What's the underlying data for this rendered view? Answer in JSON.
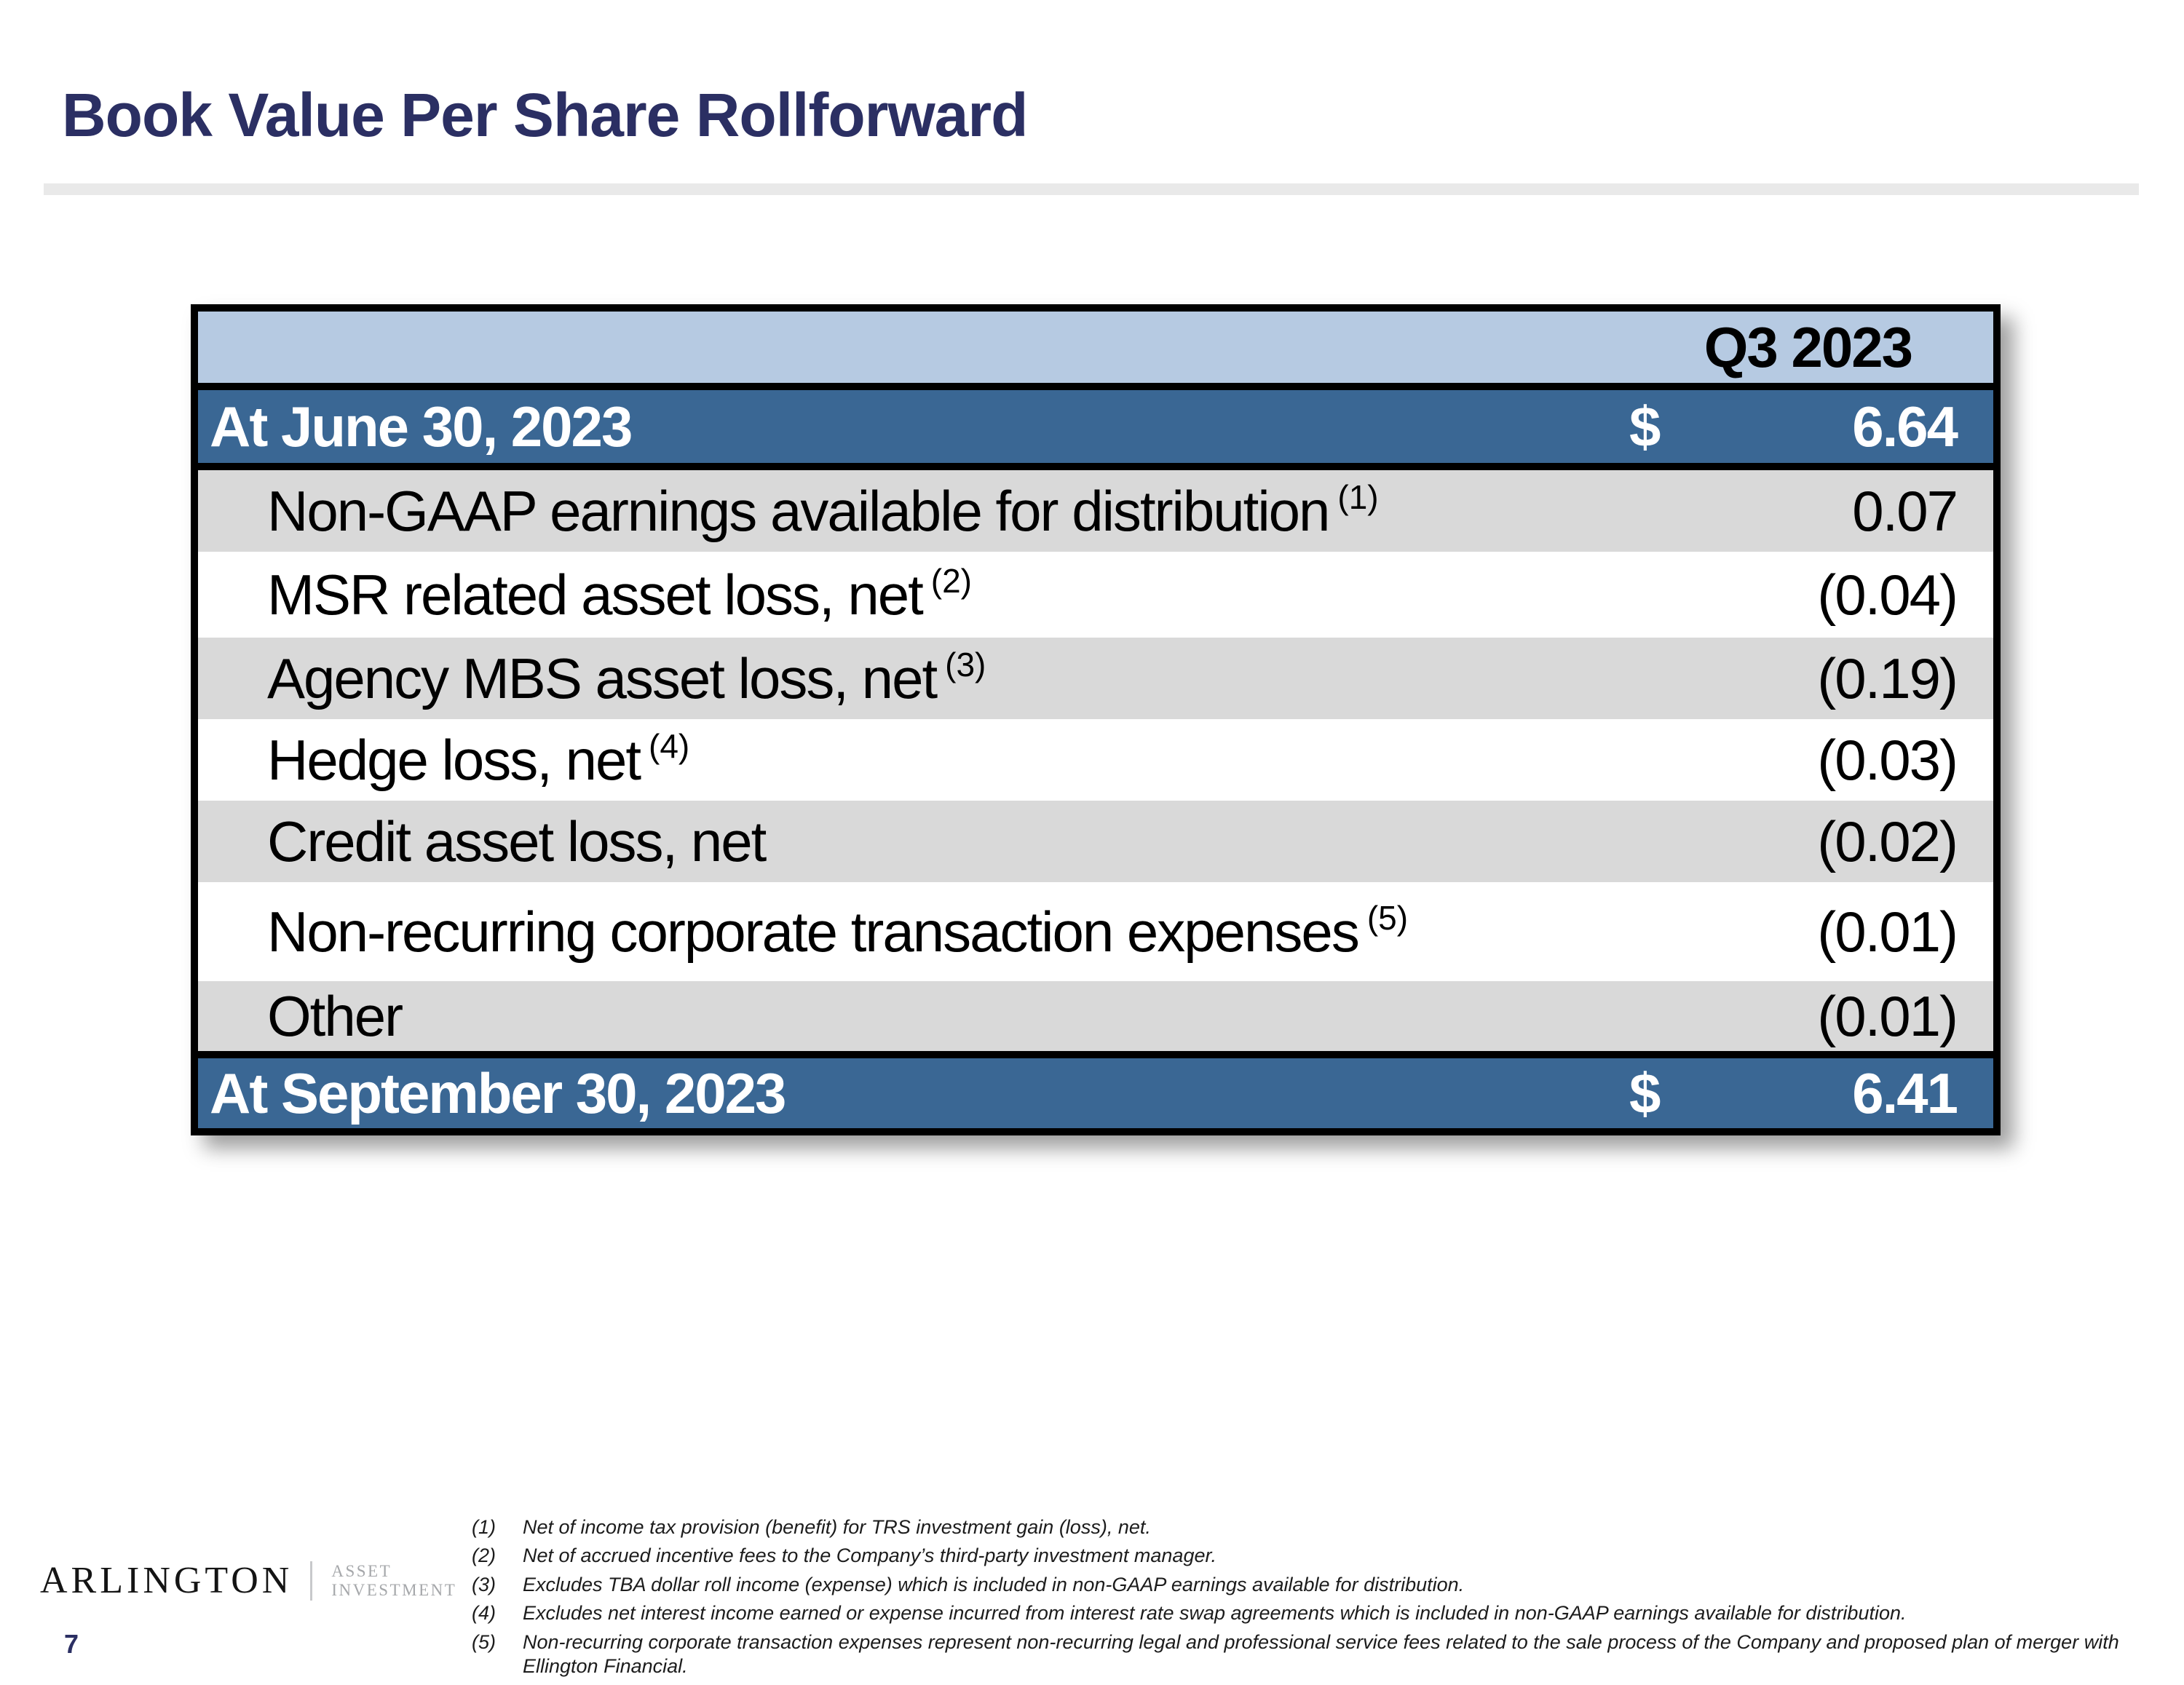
{
  "title": "Book Value Per Share Rollforward",
  "table": {
    "period_header": "Q3 2023",
    "opening": {
      "label": "At June 30, 2023",
      "currency": "$",
      "value": "6.64"
    },
    "rows": [
      {
        "label": "Non-GAAP earnings available for distribution",
        "footnote_ref": "(1)",
        "value": "0.07"
      },
      {
        "label": "MSR related asset loss, net",
        "footnote_ref": "(2)",
        "value": "(0.04)"
      },
      {
        "label": "Agency MBS asset loss, net",
        "footnote_ref": "(3)",
        "value": "(0.19)"
      },
      {
        "label": "Hedge loss, net",
        "footnote_ref": "(4)",
        "value": "(0.03)"
      },
      {
        "label": "Credit asset loss, net",
        "footnote_ref": "",
        "value": "(0.02)"
      },
      {
        "label": "Non-recurring corporate transaction expenses",
        "footnote_ref": "(5)",
        "value": "(0.01)"
      },
      {
        "label": "Other",
        "footnote_ref": "",
        "value": "(0.01)"
      }
    ],
    "closing": {
      "label": "At September 30, 2023",
      "currency": "$",
      "value": "6.41"
    }
  },
  "footnotes": [
    {
      "num": "(1)",
      "text": "Net of income tax provision (benefit) for TRS investment gain (loss), net."
    },
    {
      "num": "(2)",
      "text": "Net of accrued incentive fees to the Company’s third-party investment manager."
    },
    {
      "num": "(3)",
      "text": "Excludes TBA dollar roll income (expense) which is included in non-GAAP earnings available for distribution."
    },
    {
      "num": "(4)",
      "text": "Excludes net interest income earned or expense incurred from interest rate swap agreements which is included in non-GAAP earnings available for distribution."
    },
    {
      "num": "(5)",
      "text": "Non-recurring corporate transaction expenses represent non-recurring legal and professional service fees related to the sale process of the Company and proposed plan of merger with Ellington Financial."
    }
  ],
  "logo": {
    "primary": "ARLINGTON",
    "secondary_line1": "ASSET",
    "secondary_line2": "INVESTMENT"
  },
  "page_number": "7",
  "colors": {
    "title_navy": "#2B2F63",
    "header_light_blue": "#B6CAE2",
    "band_dark_blue": "#3A6794",
    "row_gray": "#D9D9D9",
    "border_black": "#000000"
  }
}
